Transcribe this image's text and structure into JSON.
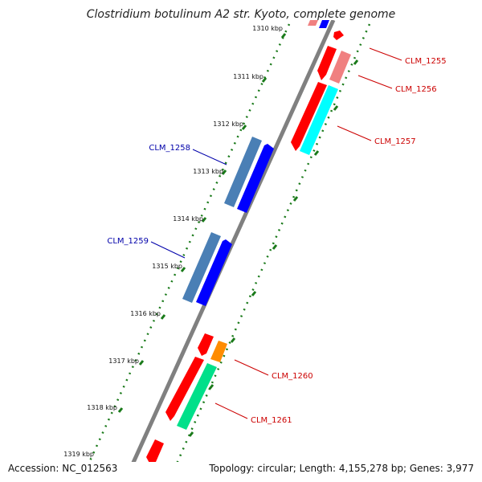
{
  "title": "Clostridium botulinum A2 str. Kyoto, complete genome",
  "accession": "Accession: NC_012563",
  "topology": "Topology: circular; Length: 4,155,278 bp; Genes: 3,977",
  "ticks": [
    {
      "label": "1310 kbp"
    },
    {
      "label": "1311 kbp"
    },
    {
      "label": "1312 kbp"
    },
    {
      "label": "1313 kbp"
    },
    {
      "label": "1314 kbp"
    },
    {
      "label": "1315 kbp"
    },
    {
      "label": "1316 kbp"
    },
    {
      "label": "1317 kbp"
    },
    {
      "label": "1318 kbp"
    },
    {
      "label": "1319 kbp"
    }
  ],
  "genes": [
    {
      "label": "CLM_1255",
      "color": "#cc0000"
    },
    {
      "label": "CLM_1256",
      "color": "#cc0000"
    },
    {
      "label": "CLM_1257",
      "color": "#cc0000"
    },
    {
      "label": "CLM_1258",
      "color": "#0000aa"
    },
    {
      "label": "CLM_1259",
      "color": "#0000aa"
    },
    {
      "label": "CLM_1260",
      "color": "#cc0000"
    },
    {
      "label": "CLM_1261",
      "color": "#cc0000"
    }
  ],
  "colors": {
    "forward_cds": "#ff0000",
    "reverse_cds": "#0000ff",
    "steelblue_feature": "#4a7fb5",
    "cyan_feature": "#00ffff",
    "pink_feature": "#f08080",
    "orange_feature": "#ff8c00",
    "green_feature": "#00e08a",
    "backbone": "#808080",
    "tick": "#1a7a1a"
  }
}
